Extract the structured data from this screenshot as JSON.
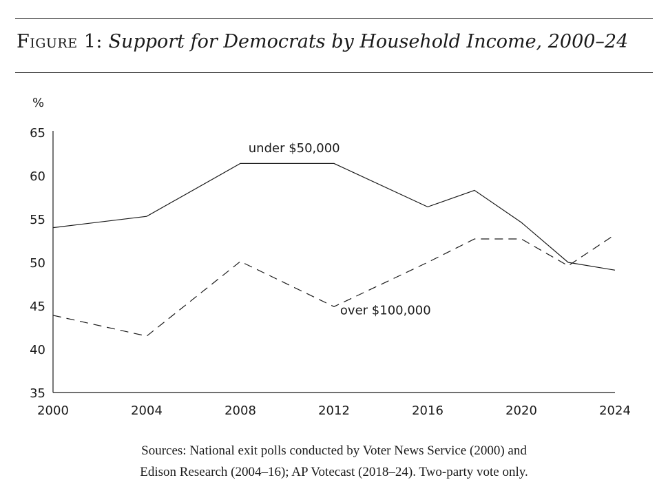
{
  "figure": {
    "label": "Figure 1:",
    "title": "Support for Democrats by Household Income, 2000–24"
  },
  "sources": {
    "line1": "Sources: National exit polls conducted by Voter News Service (2000) and",
    "line2": "Edison Research (2004–16); AP Votecast (2018–24). Two-party vote only."
  },
  "chart_data": {
    "type": "line",
    "ylabel": "%",
    "xlabel": "",
    "xlim": [
      2000,
      2024
    ],
    "ylim": [
      35,
      65
    ],
    "x_ticks": [
      2000,
      2004,
      2008,
      2012,
      2016,
      2020,
      2024
    ],
    "y_ticks": [
      35,
      40,
      45,
      50,
      55,
      60,
      65
    ],
    "grid": false,
    "series": [
      {
        "name": "under $50,000",
        "style": "solid",
        "color": "#1a1a1a",
        "x": [
          2000,
          2004,
          2008,
          2012,
          2016,
          2018,
          2020,
          2022,
          2024
        ],
        "y": [
          54.0,
          55.3,
          61.4,
          61.4,
          56.4,
          58.3,
          54.6,
          50.0,
          49.1
        ]
      },
      {
        "name": "over $100,000",
        "style": "dashed",
        "color": "#1a1a1a",
        "x": [
          2000,
          2004,
          2008,
          2012,
          2016,
          2018,
          2020,
          2022,
          2024
        ],
        "y": [
          43.9,
          41.5,
          50.1,
          44.9,
          50.0,
          52.7,
          52.7,
          49.6,
          53.2
        ]
      }
    ],
    "annotations": [
      {
        "text": "under $50,000",
        "x": 2010.3,
        "y": 62.7
      },
      {
        "text": "over $100,000",
        "x": 2014.2,
        "y": 44.0
      }
    ]
  }
}
